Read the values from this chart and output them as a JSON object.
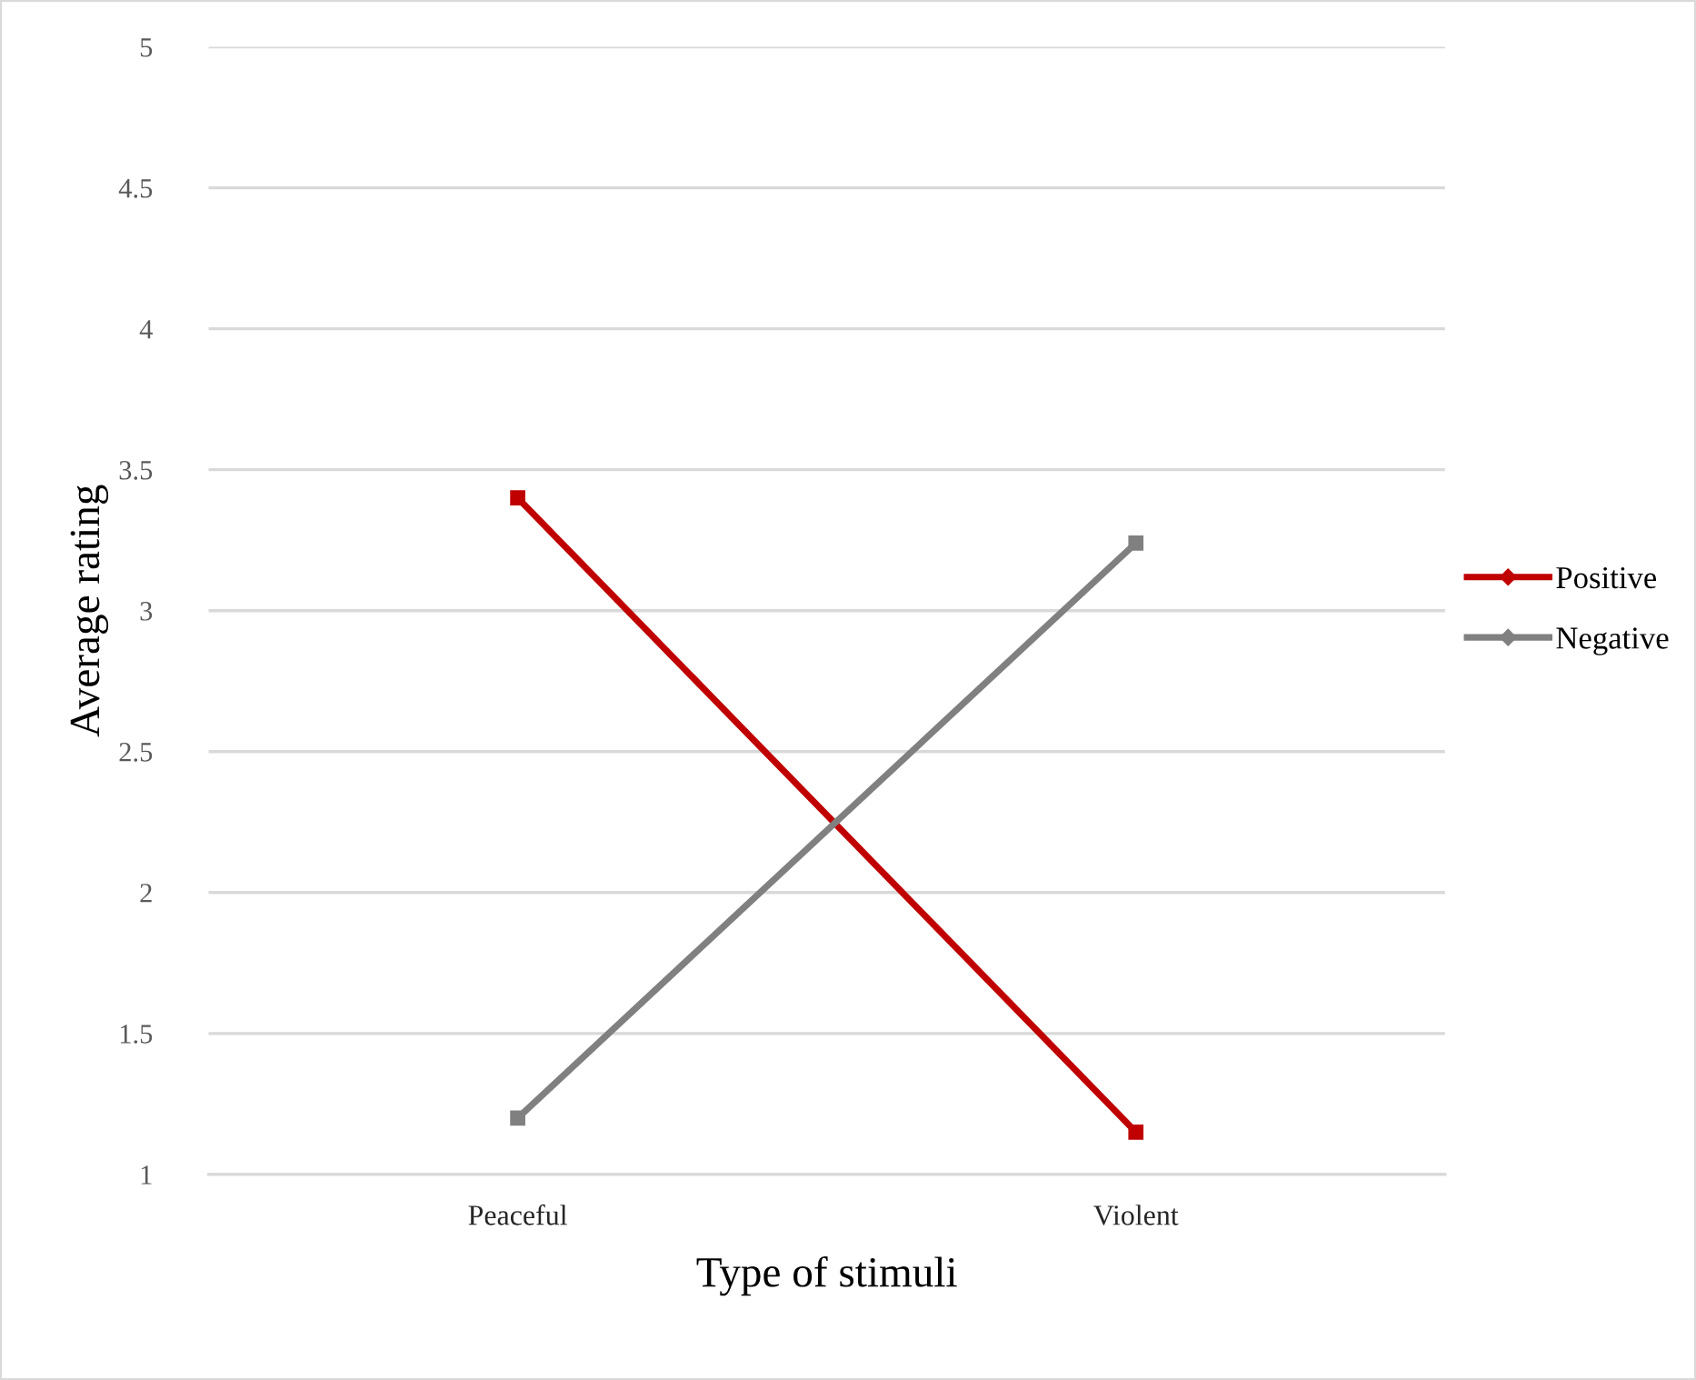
{
  "chart_data": {
    "type": "line",
    "xlabel": "Type of stimuli",
    "ylabel": "Average rating",
    "categories": [
      "Peaceful",
      "Violent"
    ],
    "series": [
      {
        "name": "Positive",
        "color": "#c00000",
        "values": [
          3.4,
          1.15
        ]
      },
      {
        "name": "Negative",
        "color": "#808080",
        "values": [
          1.2,
          3.24
        ]
      }
    ],
    "ylim": [
      1,
      5
    ],
    "yticks": [
      1,
      1.5,
      2,
      2.5,
      3,
      3.5,
      4,
      4.5,
      5
    ],
    "grid": "y",
    "legend": "right",
    "marker": "square",
    "line_style": "solid"
  }
}
